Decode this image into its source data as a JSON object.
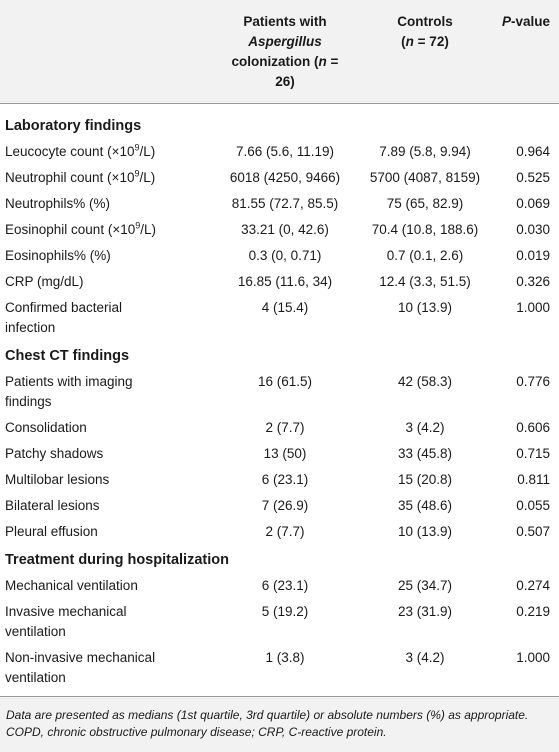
{
  "header": {
    "col_patients_line1": "Patients with",
    "col_patients_line2_italic": "Aspergillus",
    "col_patients_line3_pre": "colonization (",
    "col_patients_n_var": "n",
    "col_patients_line3_post": " = 26)",
    "col_controls_line1": "Controls",
    "col_controls_pre": "(",
    "col_controls_n_var": "n",
    "col_controls_post": " = 72)",
    "col_p_italic": "P",
    "col_p_rest": "-value"
  },
  "sections": [
    {
      "title": "Laboratory findings",
      "rows": [
        {
          "label": "Leucocyte count (×10",
          "sup": "9",
          "label_after": "/L)",
          "patients": "7.66 (5.6, 11.19)",
          "controls": "7.89 (5.8, 9.94)",
          "p": "0.964"
        },
        {
          "label": "Neutrophil count (×10",
          "sup": "9",
          "label_after": "/L)",
          "patients": "6018 (4250, 9466)",
          "controls": "5700 (4087, 8159)",
          "p": "0.525"
        },
        {
          "label": "Neutrophils% (%)",
          "sup": "",
          "label_after": "",
          "patients": "81.55 (72.7, 85.5)",
          "controls": "75 (65, 82.9)",
          "p": "0.069"
        },
        {
          "label": "Eosinophil count (×10",
          "sup": "9",
          "label_after": "/L)",
          "patients": "33.21 (0, 42.6)",
          "controls": "70.4 (10.8, 188.6)",
          "p": "0.030"
        },
        {
          "label": "Eosinophils% (%)",
          "sup": "",
          "label_after": "",
          "patients": "0.3 (0, 0.71)",
          "controls": "0.7 (0.1, 2.6)",
          "p": "0.019"
        },
        {
          "label": "CRP (mg/dL)",
          "sup": "",
          "label_after": "",
          "patients": "16.85 (11.6, 34)",
          "controls": "12.4 (3.3, 51.5)",
          "p": "0.326"
        },
        {
          "label": "Confirmed bacterial",
          "label_line2": "infection",
          "sup": "",
          "label_after": "",
          "patients": "4 (15.4)",
          "controls": "10 (13.9)",
          "p": "1.000"
        }
      ]
    },
    {
      "title": "Chest CT findings",
      "rows": [
        {
          "label": "Patients with imaging",
          "label_line2": "findings",
          "sup": "",
          "label_after": "",
          "patients": "16 (61.5)",
          "controls": "42 (58.3)",
          "p": "0.776"
        },
        {
          "label": "Consolidation",
          "sup": "",
          "label_after": "",
          "patients": "2 (7.7)",
          "controls": "3 (4.2)",
          "p": "0.606"
        },
        {
          "label": "Patchy shadows",
          "sup": "",
          "label_after": "",
          "patients": "13 (50)",
          "controls": "33 (45.8)",
          "p": "0.715"
        },
        {
          "label": "Multilobar lesions",
          "sup": "",
          "label_after": "",
          "patients": "6 (23.1)",
          "controls": "15 (20.8)",
          "p": "0.811"
        },
        {
          "label": "Bilateral lesions",
          "sup": "",
          "label_after": "",
          "patients": "7 (26.9)",
          "controls": "35 (48.6)",
          "p": "0.055"
        },
        {
          "label": "Pleural effusion",
          "sup": "",
          "label_after": "",
          "patients": "2 (7.7)",
          "controls": "10 (13.9)",
          "p": "0.507"
        }
      ]
    },
    {
      "title": "Treatment during hospitalization",
      "rows": [
        {
          "label": "Mechanical ventilation",
          "sup": "",
          "label_after": "",
          "patients": "6 (23.1)",
          "controls": "25 (34.7)",
          "p": "0.274"
        },
        {
          "label": "Invasive mechanical",
          "label_line2": "ventilation",
          "sup": "",
          "label_after": "",
          "patients": "5 (19.2)",
          "controls": "23 (31.9)",
          "p": "0.219"
        },
        {
          "label": "Non-invasive mechanical",
          "label_line2": "ventilation",
          "sup": "",
          "label_after": "",
          "patients": "1 (3.8)",
          "controls": "3 (4.2)",
          "p": "1.000"
        }
      ]
    }
  ],
  "footnote": "Data are presented as medians (1st quartile, 3rd quartile) or absolute numbers (%) as appropriate. COPD, chronic obstructive pulmonary disease; CRP, C-reactive protein."
}
